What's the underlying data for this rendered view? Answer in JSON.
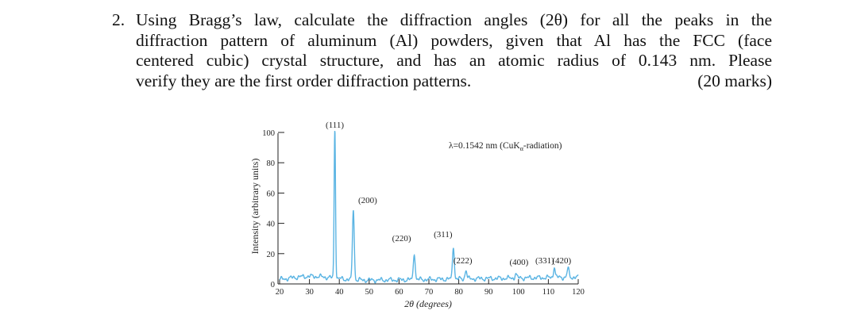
{
  "question": {
    "number": "2.",
    "lines": [
      "Using Bragg’s law, calculate the diffraction angles (2θ) for all the peaks in the",
      "diffraction pattern of aluminum (Al) powders, given that Al has the FCC (face",
      "centered cubic) crystal structure, and has an atomic radius of 0.143 nm. Please"
    ],
    "last_line": "verify they are the first order diffraction patterns.",
    "marks": "(20 marks)"
  },
  "chart_data": {
    "type": "line",
    "xlabel": "2θ (degrees)",
    "ylabel": "Intensity (arbitrary units)",
    "xlim": [
      20,
      120
    ],
    "ylim": [
      0,
      100
    ],
    "xticks": [
      20,
      30,
      40,
      50,
      60,
      70,
      80,
      90,
      100,
      110,
      120
    ],
    "yticks": [
      0,
      20,
      40,
      60,
      80,
      100
    ],
    "annotation": "λ=0.1542 nm (CuK",
    "annotation_sub": "α",
    "annotation_tail": "-radiation)",
    "line_color": "#5ab4e3",
    "peaks": [
      {
        "label": "(111)",
        "x": 38.5,
        "y": 100
      },
      {
        "label": "(200)",
        "x": 44.7,
        "y": 47
      },
      {
        "label": "(220)",
        "x": 65.1,
        "y": 18
      },
      {
        "label": "(311)",
        "x": 78.2,
        "y": 22
      },
      {
        "label": "(222)",
        "x": 82.4,
        "y": 6
      },
      {
        "label": "(400)",
        "x": 99.1,
        "y": 3
      },
      {
        "label": "(331)",
        "x": 112.0,
        "y": 7
      },
      {
        "label": "(420)",
        "x": 116.6,
        "y": 6
      }
    ]
  }
}
